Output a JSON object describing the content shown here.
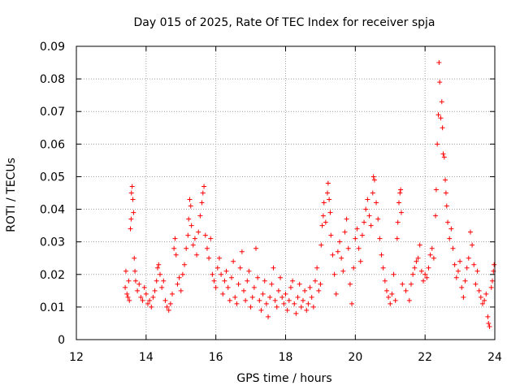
{
  "chart_data": {
    "type": "scatter",
    "title": "Day 015 of 2025, Rate Of TEC Index for receiver spja",
    "xlabel": "GPS time / hours",
    "ylabel": "ROTI / TECUs",
    "xlim": [
      12,
      24
    ],
    "ylim": [
      0,
      0.09
    ],
    "xticks": [
      "12",
      "14",
      "16",
      "18",
      "20",
      "22",
      "24"
    ],
    "yticks": [
      "0",
      "0.01",
      "0.02",
      "0.03",
      "0.04",
      "0.05",
      "0.06",
      "0.07",
      "0.08",
      "0.09"
    ],
    "grid": true,
    "marker": "plus",
    "color": "#ff0000",
    "series": [
      {
        "name": "ROTI",
        "points": [
          [
            13.4,
            0.016
          ],
          [
            13.42,
            0.021
          ],
          [
            13.45,
            0.014
          ],
          [
            13.48,
            0.013
          ],
          [
            13.5,
            0.018
          ],
          [
            13.52,
            0.012
          ],
          [
            13.55,
            0.034
          ],
          [
            13.57,
            0.037
          ],
          [
            13.58,
            0.045
          ],
          [
            13.6,
            0.047
          ],
          [
            13.62,
            0.043
          ],
          [
            13.64,
            0.039
          ],
          [
            13.66,
            0.025
          ],
          [
            13.68,
            0.021
          ],
          [
            13.7,
            0.018
          ],
          [
            13.75,
            0.015
          ],
          [
            13.8,
            0.017
          ],
          [
            13.85,
            0.013
          ],
          [
            13.9,
            0.012
          ],
          [
            13.95,
            0.016
          ],
          [
            14.0,
            0.014
          ],
          [
            14.05,
            0.011
          ],
          [
            14.1,
            0.012
          ],
          [
            14.15,
            0.01
          ],
          [
            14.2,
            0.013
          ],
          [
            14.25,
            0.015
          ],
          [
            14.3,
            0.018
          ],
          [
            14.33,
            0.022
          ],
          [
            14.36,
            0.023
          ],
          [
            14.4,
            0.02
          ],
          [
            14.45,
            0.016
          ],
          [
            14.5,
            0.018
          ],
          [
            14.55,
            0.012
          ],
          [
            14.6,
            0.01
          ],
          [
            14.65,
            0.009
          ],
          [
            14.7,
            0.011
          ],
          [
            14.75,
            0.014
          ],
          [
            14.8,
            0.028
          ],
          [
            14.83,
            0.031
          ],
          [
            14.86,
            0.026
          ],
          [
            14.9,
            0.017
          ],
          [
            14.95,
            0.019
          ],
          [
            15.0,
            0.015
          ],
          [
            15.05,
            0.02
          ],
          [
            15.1,
            0.023
          ],
          [
            15.15,
            0.028
          ],
          [
            15.2,
            0.032
          ],
          [
            15.22,
            0.037
          ],
          [
            15.25,
            0.043
          ],
          [
            15.28,
            0.041
          ],
          [
            15.3,
            0.035
          ],
          [
            15.35,
            0.029
          ],
          [
            15.4,
            0.031
          ],
          [
            15.45,
            0.026
          ],
          [
            15.5,
            0.033
          ],
          [
            15.55,
            0.038
          ],
          [
            15.6,
            0.042
          ],
          [
            15.63,
            0.045
          ],
          [
            15.66,
            0.047
          ],
          [
            15.7,
            0.032
          ],
          [
            15.75,
            0.028
          ],
          [
            15.8,
            0.025
          ],
          [
            15.85,
            0.031
          ],
          [
            15.9,
            0.02
          ],
          [
            15.95,
            0.018
          ],
          [
            16.0,
            0.016
          ],
          [
            16.05,
            0.022
          ],
          [
            16.1,
            0.025
          ],
          [
            16.15,
            0.02
          ],
          [
            16.2,
            0.014
          ],
          [
            16.25,
            0.018
          ],
          [
            16.3,
            0.021
          ],
          [
            16.35,
            0.016
          ],
          [
            16.4,
            0.012
          ],
          [
            16.45,
            0.019
          ],
          [
            16.5,
            0.024
          ],
          [
            16.55,
            0.013
          ],
          [
            16.6,
            0.011
          ],
          [
            16.65,
            0.017
          ],
          [
            16.7,
            0.022
          ],
          [
            16.75,
            0.027
          ],
          [
            16.8,
            0.015
          ],
          [
            16.85,
            0.012
          ],
          [
            16.9,
            0.018
          ],
          [
            16.95,
            0.021
          ],
          [
            17.0,
            0.01
          ],
          [
            17.05,
            0.013
          ],
          [
            17.1,
            0.016
          ],
          [
            17.15,
            0.028
          ],
          [
            17.2,
            0.019
          ],
          [
            17.25,
            0.012
          ],
          [
            17.3,
            0.009
          ],
          [
            17.35,
            0.014
          ],
          [
            17.4,
            0.018
          ],
          [
            17.45,
            0.011
          ],
          [
            17.5,
            0.007
          ],
          [
            17.55,
            0.013
          ],
          [
            17.6,
            0.017
          ],
          [
            17.65,
            0.022
          ],
          [
            17.7,
            0.012
          ],
          [
            17.75,
            0.01
          ],
          [
            17.8,
            0.015
          ],
          [
            17.85,
            0.019
          ],
          [
            17.9,
            0.013
          ],
          [
            17.95,
            0.011
          ],
          [
            18.0,
            0.014
          ],
          [
            18.05,
            0.009
          ],
          [
            18.1,
            0.012
          ],
          [
            18.15,
            0.016
          ],
          [
            18.2,
            0.018
          ],
          [
            18.25,
            0.011
          ],
          [
            18.3,
            0.008
          ],
          [
            18.35,
            0.013
          ],
          [
            18.4,
            0.017
          ],
          [
            18.45,
            0.01
          ],
          [
            18.5,
            0.012
          ],
          [
            18.55,
            0.015
          ],
          [
            18.6,
            0.009
          ],
          [
            18.65,
            0.011
          ],
          [
            18.7,
            0.016
          ],
          [
            18.75,
            0.013
          ],
          [
            18.8,
            0.01
          ],
          [
            18.85,
            0.018
          ],
          [
            18.9,
            0.022
          ],
          [
            18.95,
            0.015
          ],
          [
            19.0,
            0.017
          ],
          [
            19.02,
            0.029
          ],
          [
            19.05,
            0.035
          ],
          [
            19.08,
            0.038
          ],
          [
            19.1,
            0.042
          ],
          [
            19.15,
            0.036
          ],
          [
            19.2,
            0.045
          ],
          [
            19.22,
            0.048
          ],
          [
            19.25,
            0.043
          ],
          [
            19.28,
            0.039
          ],
          [
            19.3,
            0.032
          ],
          [
            19.35,
            0.026
          ],
          [
            19.4,
            0.02
          ],
          [
            19.45,
            0.014
          ],
          [
            19.5,
            0.027
          ],
          [
            19.55,
            0.03
          ],
          [
            19.6,
            0.025
          ],
          [
            19.65,
            0.021
          ],
          [
            19.7,
            0.033
          ],
          [
            19.75,
            0.037
          ],
          [
            19.8,
            0.028
          ],
          [
            19.85,
            0.017
          ],
          [
            19.9,
            0.011
          ],
          [
            19.95,
            0.022
          ],
          [
            20.0,
            0.031
          ],
          [
            20.05,
            0.034
          ],
          [
            20.1,
            0.028
          ],
          [
            20.15,
            0.024
          ],
          [
            20.2,
            0.032
          ],
          [
            20.25,
            0.036
          ],
          [
            20.3,
            0.04
          ],
          [
            20.35,
            0.043
          ],
          [
            20.4,
            0.038
          ],
          [
            20.45,
            0.035
          ],
          [
            20.5,
            0.045
          ],
          [
            20.52,
            0.05
          ],
          [
            20.55,
            0.049
          ],
          [
            20.6,
            0.042
          ],
          [
            20.65,
            0.037
          ],
          [
            20.7,
            0.031
          ],
          [
            20.75,
            0.026
          ],
          [
            20.8,
            0.022
          ],
          [
            20.85,
            0.018
          ],
          [
            20.9,
            0.015
          ],
          [
            20.95,
            0.013
          ],
          [
            21.0,
            0.011
          ],
          [
            21.05,
            0.014
          ],
          [
            21.1,
            0.02
          ],
          [
            21.15,
            0.012
          ],
          [
            21.2,
            0.031
          ],
          [
            21.22,
            0.036
          ],
          [
            21.25,
            0.042
          ],
          [
            21.28,
            0.045
          ],
          [
            21.3,
            0.046
          ],
          [
            21.32,
            0.039
          ],
          [
            21.35,
            0.017
          ],
          [
            21.45,
            0.015
          ],
          [
            21.55,
            0.012
          ],
          [
            21.6,
            0.017
          ],
          [
            21.65,
            0.02
          ],
          [
            21.7,
            0.022
          ],
          [
            21.75,
            0.024
          ],
          [
            21.8,
            0.025
          ],
          [
            21.85,
            0.029
          ],
          [
            21.9,
            0.021
          ],
          [
            21.95,
            0.018
          ],
          [
            22.0,
            0.02
          ],
          [
            22.05,
            0.019
          ],
          [
            22.1,
            0.022
          ],
          [
            22.15,
            0.026
          ],
          [
            22.2,
            0.028
          ],
          [
            22.25,
            0.025
          ],
          [
            22.3,
            0.038
          ],
          [
            22.32,
            0.046
          ],
          [
            22.35,
            0.06
          ],
          [
            22.38,
            0.069
          ],
          [
            22.4,
            0.085
          ],
          [
            22.42,
            0.079
          ],
          [
            22.45,
            0.068
          ],
          [
            22.48,
            0.073
          ],
          [
            22.5,
            0.065
          ],
          [
            22.52,
            0.057
          ],
          [
            22.55,
            0.056
          ],
          [
            22.58,
            0.049
          ],
          [
            22.6,
            0.045
          ],
          [
            22.62,
            0.041
          ],
          [
            22.65,
            0.036
          ],
          [
            22.7,
            0.031
          ],
          [
            22.75,
            0.034
          ],
          [
            22.8,
            0.028
          ],
          [
            22.85,
            0.023
          ],
          [
            22.9,
            0.019
          ],
          [
            22.95,
            0.021
          ],
          [
            23.0,
            0.024
          ],
          [
            23.05,
            0.016
          ],
          [
            23.1,
            0.013
          ],
          [
            23.15,
            0.018
          ],
          [
            23.2,
            0.022
          ],
          [
            23.25,
            0.025
          ],
          [
            23.3,
            0.033
          ],
          [
            23.35,
            0.029
          ],
          [
            23.4,
            0.023
          ],
          [
            23.45,
            0.017
          ],
          [
            23.5,
            0.021
          ],
          [
            23.55,
            0.015
          ],
          [
            23.6,
            0.013
          ],
          [
            23.65,
            0.011
          ],
          [
            23.7,
            0.012
          ],
          [
            23.75,
            0.014
          ],
          [
            23.8,
            0.007
          ],
          [
            23.82,
            0.005
          ],
          [
            23.85,
            0.004
          ],
          [
            23.9,
            0.016
          ],
          [
            23.93,
            0.018
          ],
          [
            23.96,
            0.021
          ],
          [
            23.98,
            0.023
          ]
        ]
      }
    ]
  }
}
